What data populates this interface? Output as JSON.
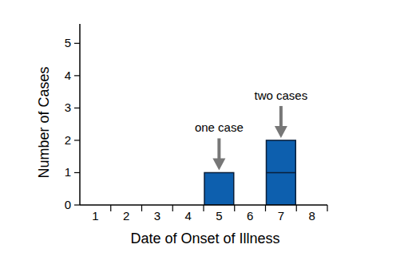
{
  "chart_data": {
    "type": "bar",
    "x_label": "Date of Onset of Illness",
    "y_label": "Number of Cases",
    "categories": [
      "1",
      "2",
      "3",
      "4",
      "5",
      "6",
      "7",
      "8"
    ],
    "values": [
      0,
      0,
      0,
      0,
      1,
      0,
      2,
      0
    ],
    "color": "#0d5fae",
    "ylim": [
      0,
      5.6
    ],
    "yticks": [
      0,
      1,
      2,
      3,
      4,
      5
    ],
    "annotations": [
      {
        "text": "one case",
        "category": "5"
      },
      {
        "text": "two cases",
        "category": "7"
      }
    ]
  }
}
